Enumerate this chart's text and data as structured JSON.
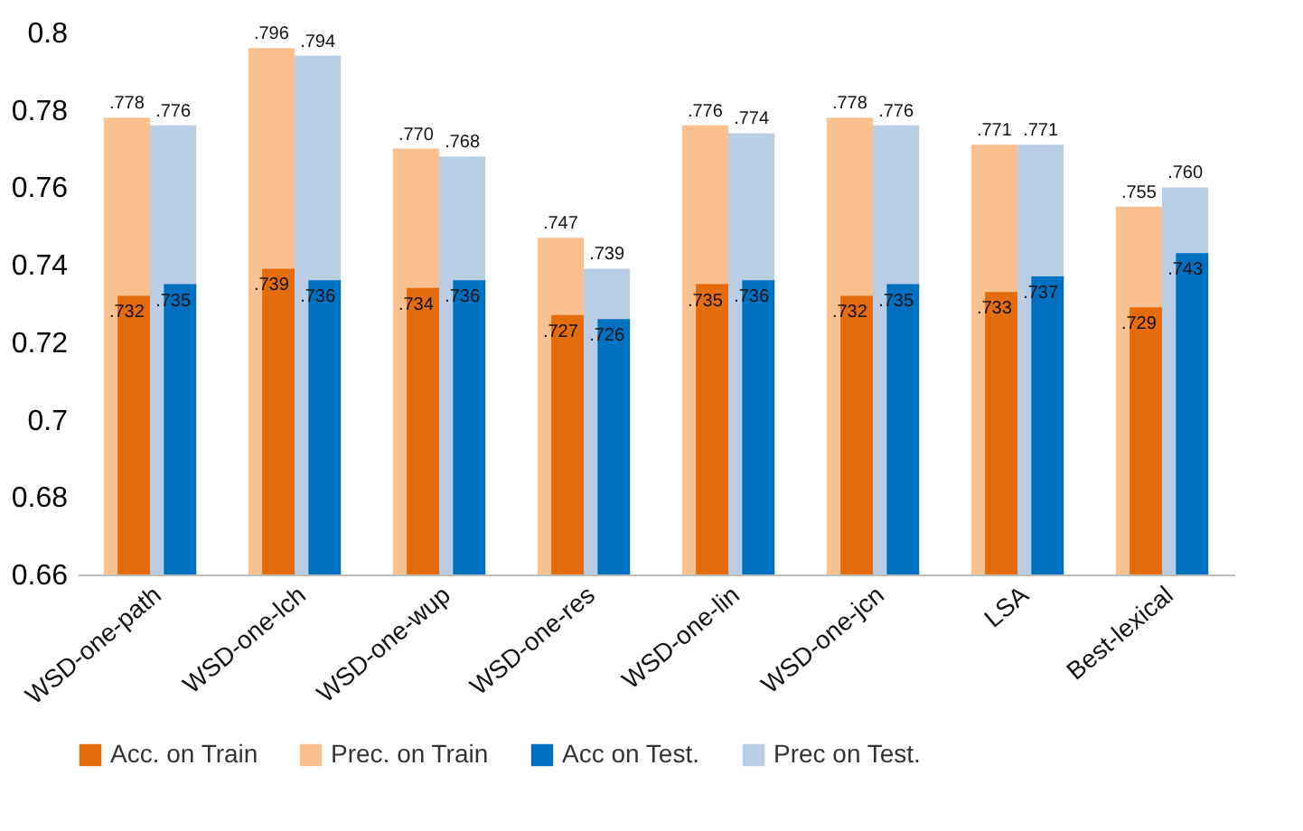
{
  "chart_data": {
    "type": "bar",
    "categories": [
      "WSD-one-path",
      "WSD-one-lch",
      "WSD-one-wup",
      "WSD-one-res",
      "WSD-one-lin",
      "WSD-one-jcn",
      "LSA",
      "Best-lexical"
    ],
    "series": [
      {
        "name": "Acc. on Train",
        "color": "#e46c0a",
        "values": [
          0.732,
          0.739,
          0.734,
          0.727,
          0.735,
          0.732,
          0.733,
          0.729
        ],
        "value_labels": [
          ".732",
          ".739",
          ".734",
          ".727",
          ".735",
          ".732",
          ".733",
          ".729"
        ]
      },
      {
        "name": "Prec. on Train",
        "color": "#fac090",
        "values": [
          0.778,
          0.796,
          0.77,
          0.747,
          0.776,
          0.778,
          0.771,
          0.755
        ],
        "value_labels": [
          ".778",
          ".796",
          ".770",
          ".747",
          ".776",
          ".778",
          ".771",
          ".755"
        ]
      },
      {
        "name": "Acc on Test.",
        "color": "#0070c0",
        "values": [
          0.735,
          0.736,
          0.736,
          0.726,
          0.736,
          0.735,
          0.737,
          0.743
        ],
        "value_labels": [
          ".735",
          ".736",
          ".736",
          ".726",
          ".736",
          ".735",
          ".737",
          ".743"
        ]
      },
      {
        "name": "Prec on Test.",
        "color": "#b9cde5",
        "values": [
          0.776,
          0.794,
          0.768,
          0.739,
          0.774,
          0.776,
          0.771,
          0.76
        ],
        "value_labels": [
          ".776",
          ".794",
          ".768",
          ".739",
          ".774",
          ".776",
          ".771",
          ".760"
        ]
      }
    ],
    "ylim": [
      0.66,
      0.8
    ],
    "yticks": [
      0.66,
      0.68,
      0.7,
      0.72,
      0.74,
      0.76,
      0.78,
      0.8
    ],
    "grid": false,
    "legend": "bottom"
  }
}
